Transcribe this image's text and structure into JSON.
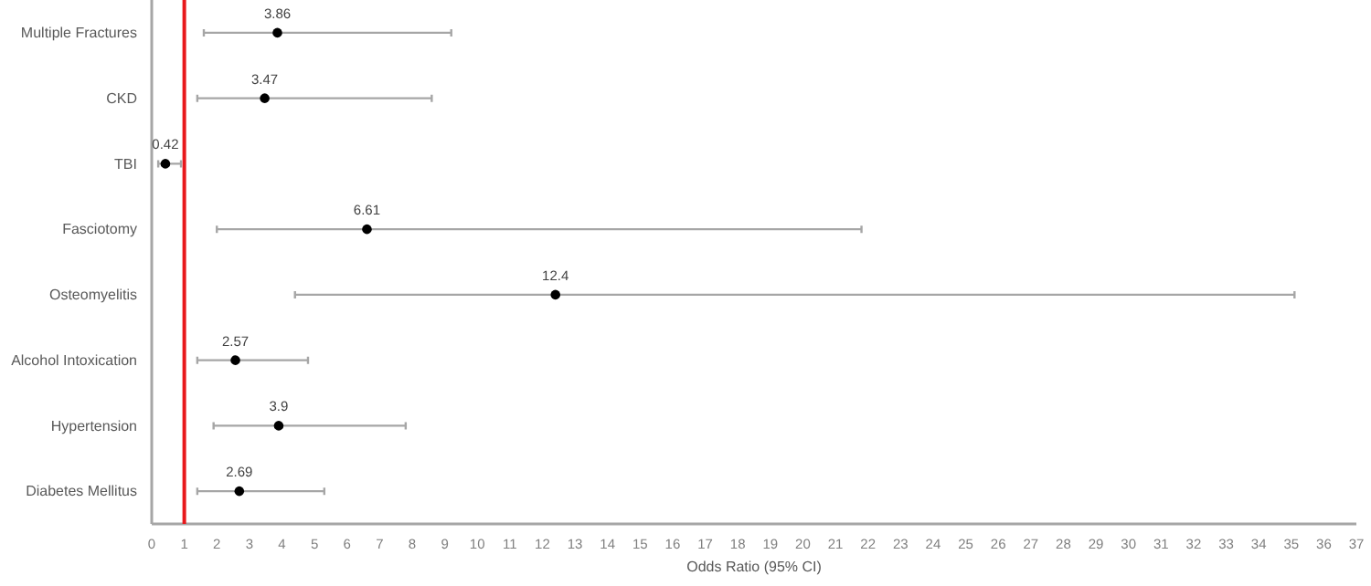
{
  "chart_data": {
    "type": "scatter",
    "orientation": "horizontal",
    "xlabel": "Odds Ratio (95% CI)",
    "categories": [
      "Multiple Fractures",
      "CKD",
      "TBI",
      "Fasciotomy",
      "Osteomyelitis",
      "Alcohol Intoxication",
      "Hypertension",
      "Diabetes Mellitus"
    ],
    "values": [
      3.86,
      3.47,
      0.42,
      6.61,
      12.4,
      2.57,
      3.9,
      2.69
    ],
    "errors": [
      [
        1.6,
        9.2
      ],
      [
        1.4,
        8.6
      ],
      [
        0.2,
        0.9
      ],
      [
        2.0,
        21.8
      ],
      [
        4.4,
        35.1
      ],
      [
        1.4,
        4.8
      ],
      [
        1.9,
        7.8
      ],
      [
        1.4,
        5.3
      ]
    ],
    "color": "#000000",
    "marker": "circle",
    "data_labels": true,
    "xlim": [
      0,
      37
    ],
    "xticks": [
      0,
      1,
      2,
      3,
      4,
      5,
      6,
      7,
      8,
      9,
      10,
      11,
      12,
      13,
      14,
      15,
      16,
      17,
      18,
      19,
      20,
      21,
      22,
      23,
      24,
      25,
      26,
      27,
      28,
      29,
      30,
      31,
      32,
      33,
      34,
      35,
      36,
      37
    ],
    "ref_lines": [
      {
        "axis": "x",
        "value": 1,
        "color": "#e8191c"
      }
    ]
  }
}
